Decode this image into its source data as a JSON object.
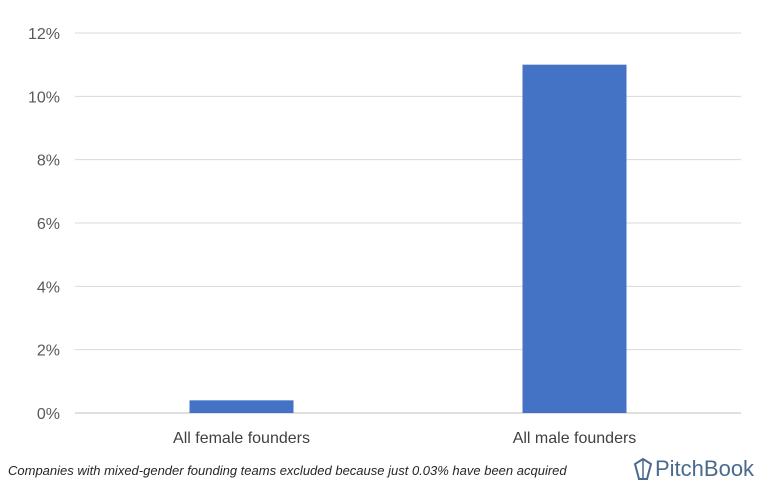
{
  "chart_data": {
    "type": "bar",
    "categories": [
      "All female founders",
      "All male founders"
    ],
    "values": [
      0.4,
      11.0
    ],
    "ylim": [
      0,
      12
    ],
    "yticks": [
      0,
      2,
      4,
      6,
      8,
      10,
      12
    ],
    "ytick_labels": [
      "0%",
      "2%",
      "4%",
      "6%",
      "8%",
      "10%",
      "12%"
    ],
    "title": "",
    "xlabel": "",
    "ylabel": "",
    "grid": true,
    "bar_color": "#4472c4"
  },
  "footnote": "Companies with mixed-gender founding teams excluded because just 0.03% have been acquired",
  "logo": {
    "text": "PitchBook",
    "icon": "pitchbook-logo-icon",
    "color": "#4a6a8c"
  }
}
